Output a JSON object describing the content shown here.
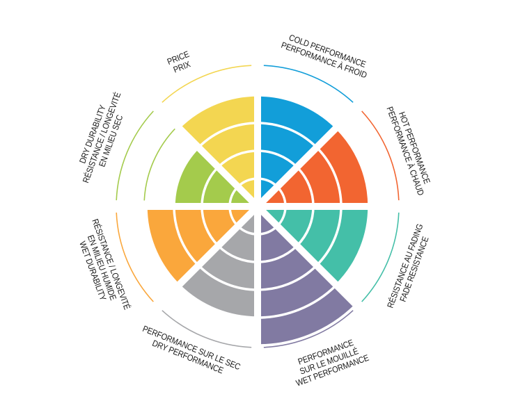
{
  "chart_data": {
    "type": "polar-bar",
    "scale_max": 5,
    "grid": "concentric rings per level",
    "sectors": [
      {
        "lines": [
          "COLD PERFORMANCE",
          "PERFORMANCE À FROID"
        ],
        "value": 4,
        "color": "#129ed9"
      },
      {
        "lines": [
          "HOT PERFORMANCE",
          "PERFORMANCE À CHAUD"
        ],
        "value": 4,
        "color": "#f26531"
      },
      {
        "lines": [
          "RÉSISTANCE AU FADING",
          "FADE RESISTANCE"
        ],
        "value": 4,
        "color": "#44bfa8"
      },
      {
        "lines": [
          "PERFORMANCE",
          "SUR LE MOUILLÉ",
          "WET PERFORMANCE"
        ],
        "value": 5,
        "color": "#817aa2"
      },
      {
        "lines": [
          "PERFORMANCE SUR LE SEC",
          "DRY PERFORMANCE"
        ],
        "value": 4,
        "color": "#a6a7aa"
      },
      {
        "lines": [
          "RÉSISTANCE / LONGEVITÉ",
          "EN MILIEU HUMIDE",
          "WET DURABILITY"
        ],
        "value": 4,
        "color": "#faa73c"
      },
      {
        "lines": [
          "DRY DURABILITY",
          "RÉSISTANCE / LONGEVITÉ",
          "EN MILIEU SEC"
        ],
        "value": 3,
        "color": "#a4cb4c"
      },
      {
        "lines": [
          "PRICE",
          "PRIX"
        ],
        "value": 4,
        "color": "#f3d651"
      }
    ]
  }
}
